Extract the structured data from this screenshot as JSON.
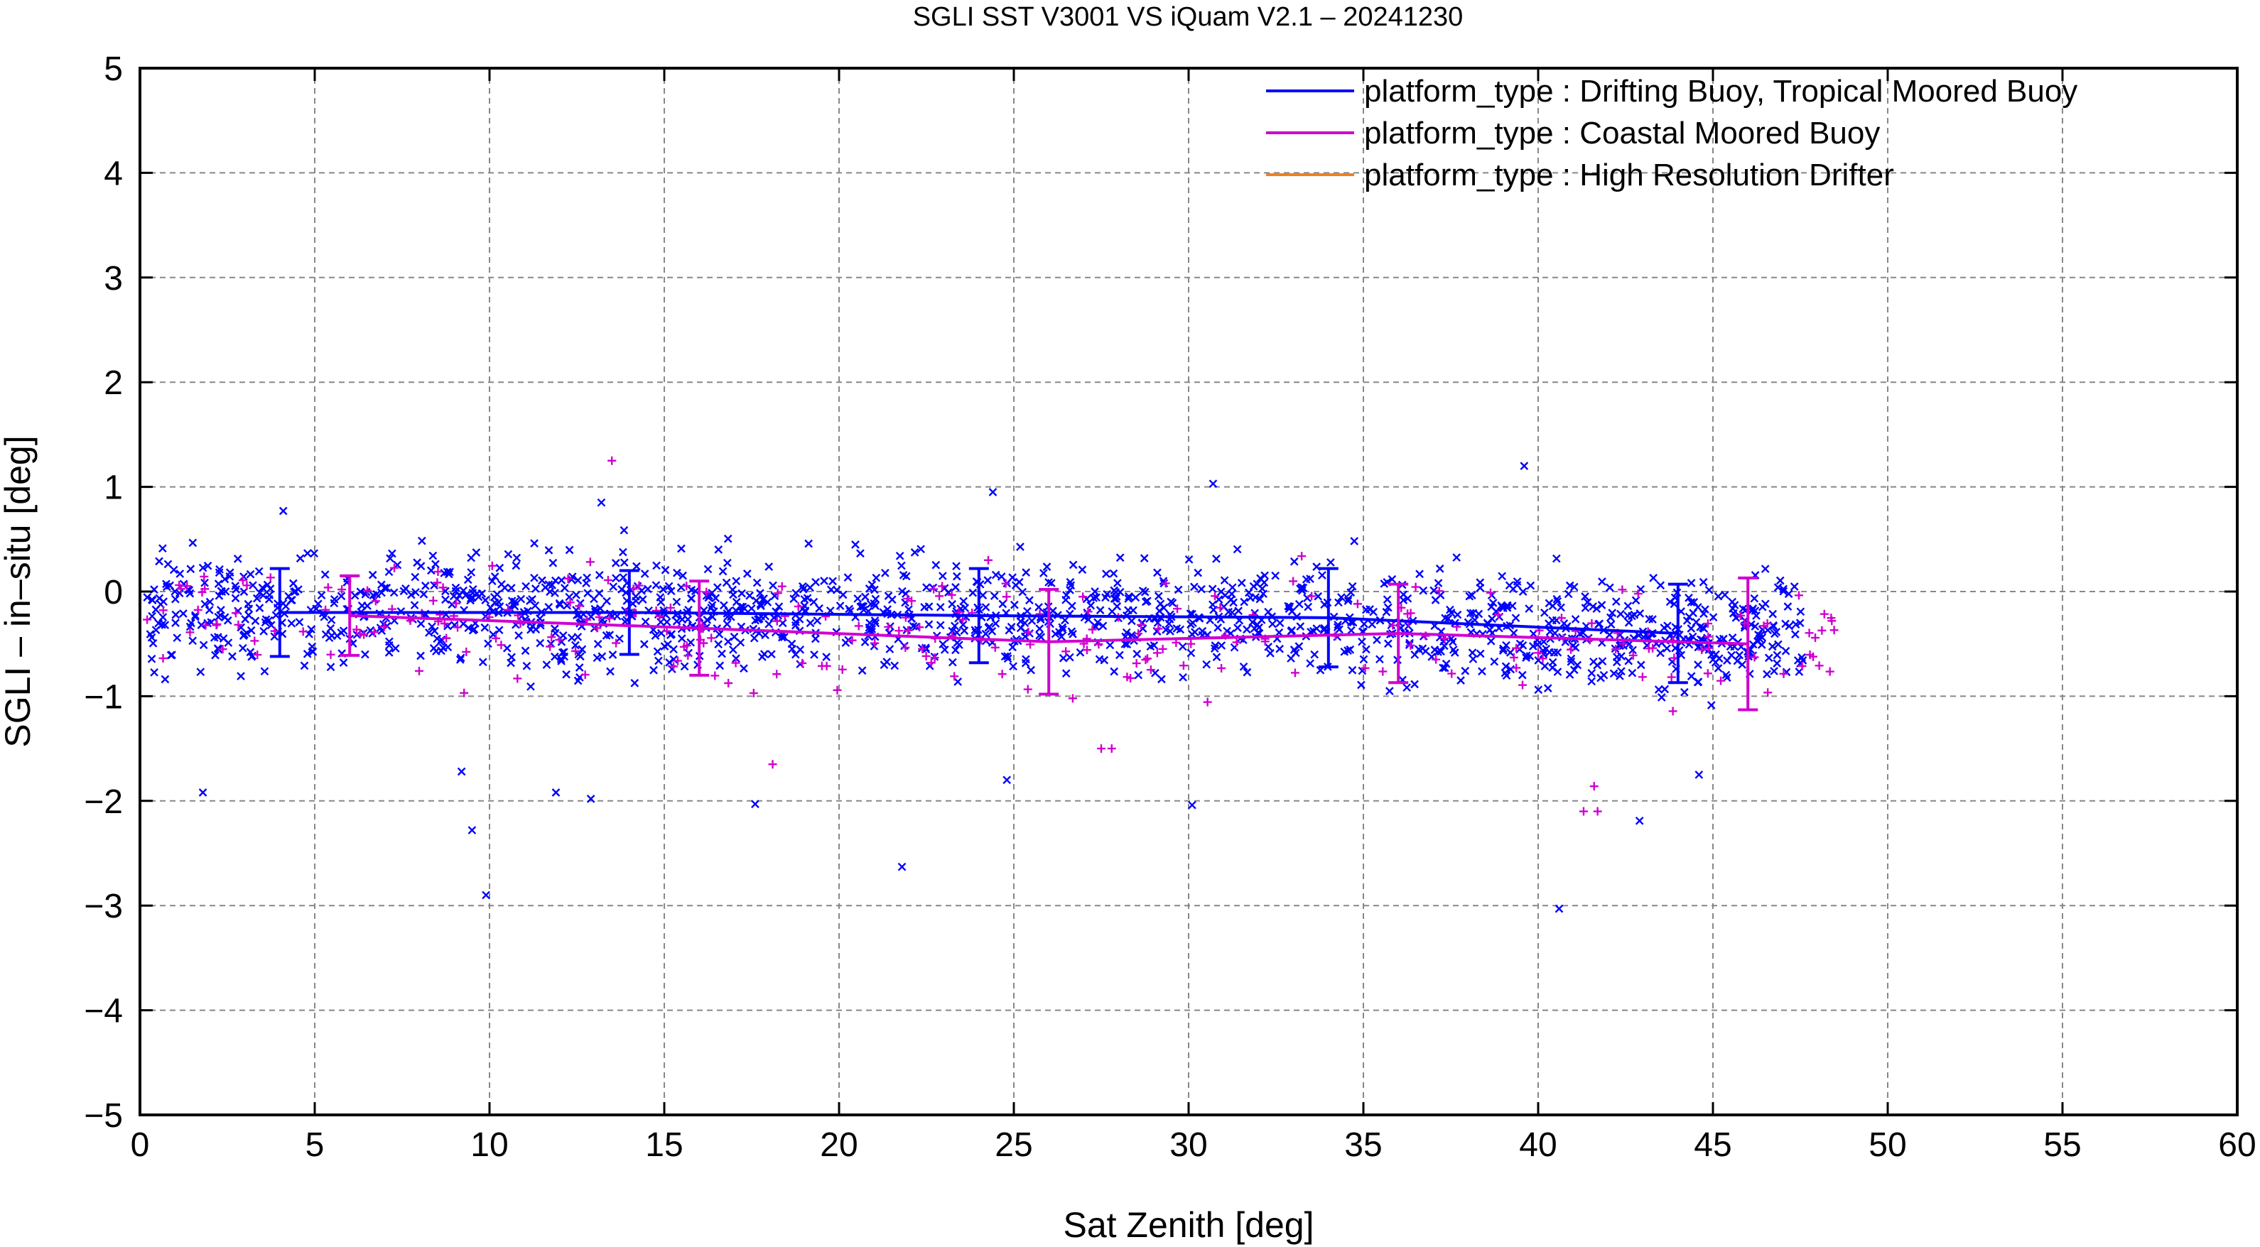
{
  "chart_data": {
    "type": "scatter",
    "title": "SGLI SST V3001 VS iQuam V2.1  – 20241230",
    "xlabel": "Sat Zenith [deg]",
    "ylabel": "SGLI – in–situ [deg]",
    "xlim": [
      0,
      60
    ],
    "ylim": [
      -5,
      5
    ],
    "xticks": [
      0,
      5,
      10,
      15,
      20,
      25,
      30,
      35,
      40,
      45,
      50,
      55,
      60
    ],
    "yticks": [
      -5,
      -4,
      -3,
      -2,
      -1,
      0,
      1,
      2,
      3,
      4,
      5
    ],
    "xtick_labels": [
      "0",
      "5",
      "10",
      "15",
      "20",
      "25",
      "30",
      "35",
      "40",
      "45",
      "50",
      "55",
      "60"
    ],
    "ytick_labels": [
      "−5",
      "−4",
      "−3",
      "−2",
      "−1",
      "0",
      "1",
      "2",
      "3",
      "4",
      "5"
    ],
    "grid": true,
    "legend_position": "top-right",
    "series": [
      {
        "name": "platform_type : Drifting Buoy, Tropical Moored Buoy",
        "color": "#0000ff",
        "marker": "x",
        "mean_x": [
          4,
          14,
          24,
          34,
          44
        ],
        "mean_y": [
          -0.2,
          -0.2,
          -0.23,
          -0.25,
          -0.4
        ],
        "std": [
          0.42,
          0.4,
          0.45,
          0.47,
          0.47
        ],
        "notable_points": [
          {
            "x": 1.8,
            "y": -1.92
          },
          {
            "x": 9.2,
            "y": -1.72
          },
          {
            "x": 9.5,
            "y": -2.28
          },
          {
            "x": 9.9,
            "y": -2.9
          },
          {
            "x": 11.9,
            "y": -1.92
          },
          {
            "x": 12.9,
            "y": -1.98
          },
          {
            "x": 17.6,
            "y": -2.03
          },
          {
            "x": 21.8,
            "y": -2.63
          },
          {
            "x": 30.1,
            "y": -2.04
          },
          {
            "x": 40.6,
            "y": -3.03
          },
          {
            "x": 42.9,
            "y": -2.19
          },
          {
            "x": 39.6,
            "y": 1.2
          },
          {
            "x": 30.7,
            "y": 1.03
          },
          {
            "x": 24.4,
            "y": 0.95
          },
          {
            "x": 13.2,
            "y": 0.85
          },
          {
            "x": 4.1,
            "y": 0.77
          },
          {
            "x": 24.8,
            "y": -1.8
          },
          {
            "x": 44.6,
            "y": -1.75
          }
        ]
      },
      {
        "name": "platform_type : Coastal Moored Buoy",
        "color": "#d000d0",
        "marker": "+",
        "mean_x": [
          6,
          16,
          26,
          36,
          46
        ],
        "mean_y": [
          -0.23,
          -0.35,
          -0.48,
          -0.4,
          -0.5
        ],
        "std": [
          0.38,
          0.45,
          0.5,
          0.47,
          0.63
        ],
        "notable_points": [
          {
            "x": 13.5,
            "y": 1.25
          },
          {
            "x": 41.6,
            "y": -1.86
          },
          {
            "x": 41.3,
            "y": -2.1
          },
          {
            "x": 41.7,
            "y": -2.1
          },
          {
            "x": 18.1,
            "y": -1.65
          },
          {
            "x": 48.4,
            "y": -0.28
          },
          {
            "x": 27.5,
            "y": -1.5
          },
          {
            "x": 27.8,
            "y": -1.5
          }
        ]
      },
      {
        "name": "platform_type : High Resolution Drifter",
        "color": "#f08020",
        "marker": "line",
        "mean_x": [],
        "mean_y": [],
        "std": []
      }
    ]
  }
}
